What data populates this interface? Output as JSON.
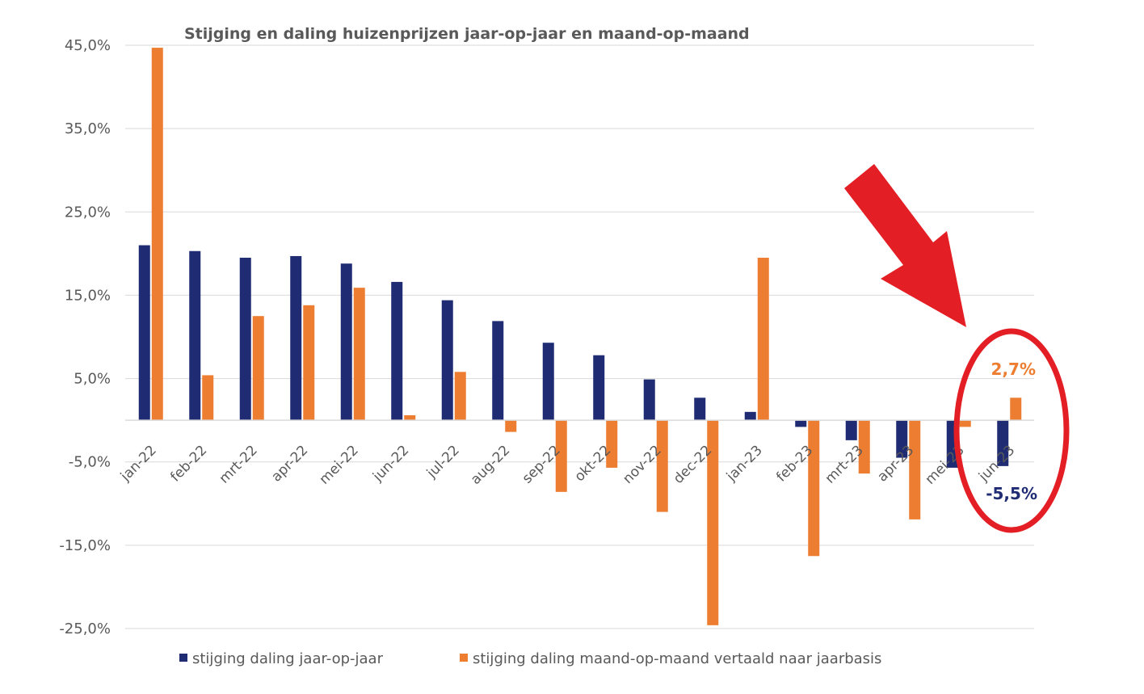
{
  "chart_data": {
    "type": "bar",
    "title": "Stijging en daling huizenprijzen jaar-op-jaar en maand-op-maand",
    "categories": [
      "jan-22",
      "feb-22",
      "mrt-22",
      "apr-22",
      "mei-22",
      "jun-22",
      "jul-22",
      "aug-22",
      "sep-22",
      "okt-22",
      "nov-22",
      "dec-22",
      "jan-23",
      "feb-23",
      "mrt-23",
      "apr-23",
      "mei-23",
      "jun-23"
    ],
    "series": [
      {
        "name": "stijging daling jaar-op-jaar",
        "color": "#1F2C73",
        "values": [
          21.0,
          20.3,
          19.5,
          19.7,
          18.8,
          16.6,
          14.4,
          11.9,
          9.3,
          7.8,
          4.9,
          2.7,
          1.0,
          -0.8,
          -2.4,
          -4.5,
          -5.7,
          -5.5
        ]
      },
      {
        "name": "stijging daling maand-op-maand vertaald naar jaarbasis",
        "color": "#ED7D31",
        "values": [
          44.7,
          5.4,
          12.5,
          13.8,
          15.9,
          0.6,
          5.8,
          -1.4,
          -8.6,
          -5.7,
          -11.0,
          -24.6,
          19.5,
          -16.3,
          -6.4,
          -11.9,
          -0.8,
          2.7
        ]
      }
    ],
    "ylim": [
      -25,
      45
    ],
    "yticks": [
      "-25,0%",
      "-15,0%",
      "-5,0%",
      "5,0%",
      "15,0%",
      "25,0%",
      "35,0%",
      "45,0%"
    ],
    "ytick_values": [
      -25,
      -15,
      -5,
      5,
      15,
      25,
      35,
      45
    ],
    "grid": true,
    "legend": "bottom",
    "annotations": {
      "orange_label": "2,7%",
      "blue_label": "-5,5%",
      "orange_label_color": "#ED7D31",
      "blue_label_color": "#1F2C73",
      "highlight_color": "#E31E24"
    }
  }
}
